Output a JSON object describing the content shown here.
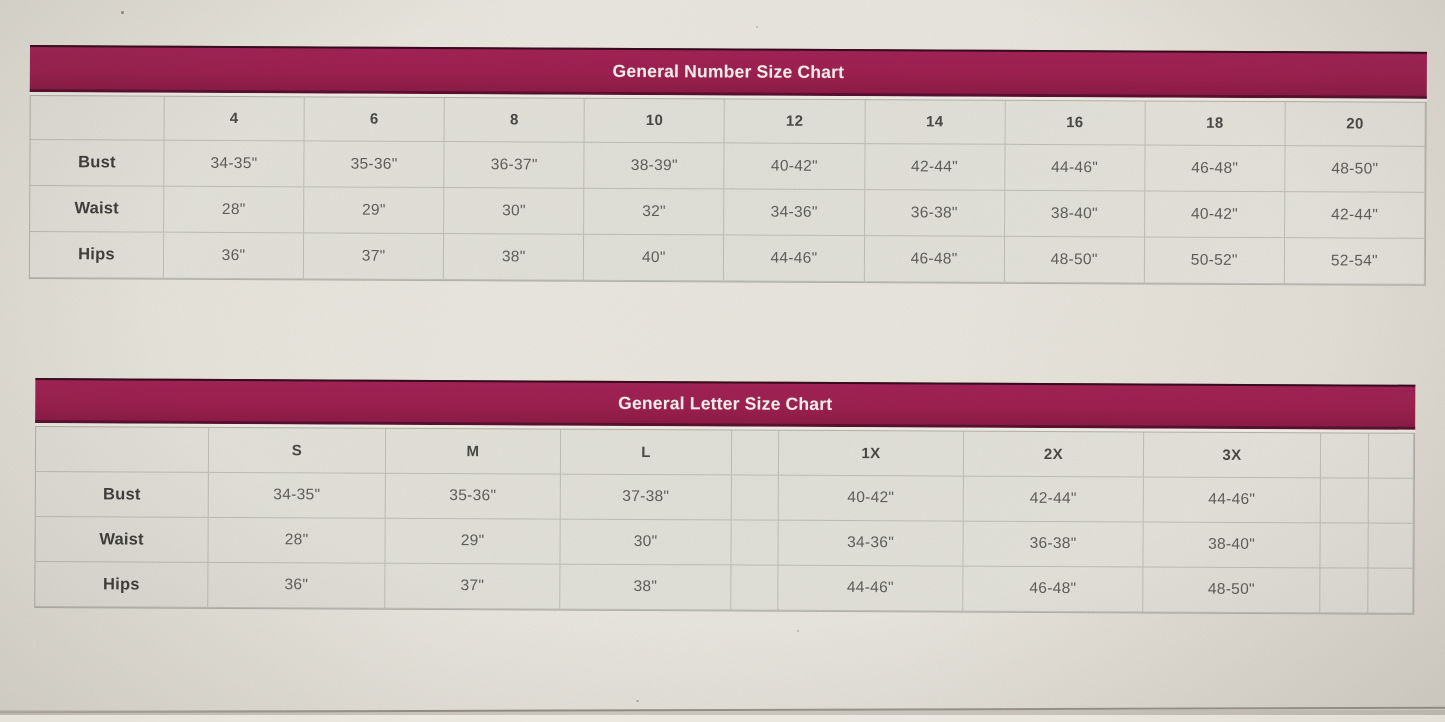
{
  "tables": [
    {
      "title": "General Number Size Chart",
      "accent_color": "#9e2150",
      "columns": [
        "",
        "4",
        "6",
        "8",
        "10",
        "12",
        "14",
        "16",
        "18",
        "20"
      ],
      "rows": [
        {
          "label": "Bust",
          "values": [
            "34-35\"",
            "35-36\"",
            "36-37\"",
            "38-39\"",
            "40-42\"",
            "42-44\"",
            "44-46\"",
            "46-48\"",
            "48-50\""
          ]
        },
        {
          "label": "Waist",
          "values": [
            "28\"",
            "29\"",
            "30\"",
            "32\"",
            "34-36\"",
            "36-38\"",
            "38-40\"",
            "40-42\"",
            "42-44\""
          ]
        },
        {
          "label": "Hips",
          "values": [
            "36\"",
            "37\"",
            "38\"",
            "40\"",
            "44-46\"",
            "46-48\"",
            "48-50\"",
            "50-52\"",
            "52-54\""
          ]
        }
      ]
    },
    {
      "title": "General Letter Size Chart",
      "accent_color": "#9e2150",
      "columns": [
        "",
        "S",
        "M",
        "L",
        "",
        "1X",
        "2X",
        "3X",
        "",
        ""
      ],
      "rows": [
        {
          "label": "Bust",
          "values": [
            "34-35\"",
            "35-36\"",
            "37-38\"",
            "",
            "40-42\"",
            "42-44\"",
            "44-46\"",
            "",
            ""
          ]
        },
        {
          "label": "Waist",
          "values": [
            "28\"",
            "29\"",
            "30\"",
            "",
            "34-36\"",
            "36-38\"",
            "38-40\"",
            "",
            ""
          ]
        },
        {
          "label": "Hips",
          "values": [
            "36\"",
            "37\"",
            "38\"",
            "",
            "44-46\"",
            "46-48\"",
            "48-50\"",
            "",
            ""
          ]
        }
      ]
    }
  ]
}
